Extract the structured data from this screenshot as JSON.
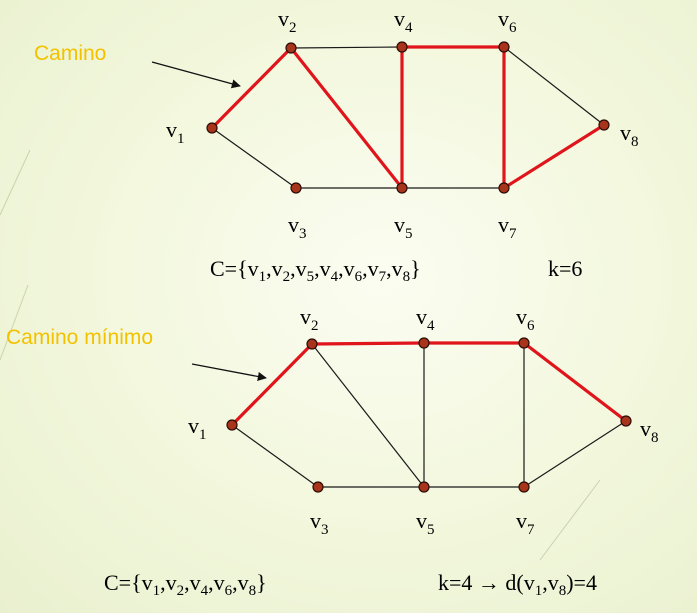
{
  "colors": {
    "path_edge": "#e0151b",
    "edge": "#1a1a1a",
    "node": "#a8341b",
    "callout_text": "#f2c200"
  },
  "graphs": [
    {
      "id": "top",
      "callout": "Camino",
      "vertices": [
        "v1",
        "v2",
        "v3",
        "v4",
        "v5",
        "v6",
        "v7",
        "v8"
      ],
      "edges": [
        {
          "from": "v1",
          "to": "v2",
          "highlighted": true
        },
        {
          "from": "v1",
          "to": "v3",
          "highlighted": false
        },
        {
          "from": "v2",
          "to": "v4",
          "highlighted": false
        },
        {
          "from": "v2",
          "to": "v5",
          "highlighted": true
        },
        {
          "from": "v3",
          "to": "v5",
          "highlighted": false
        },
        {
          "from": "v4",
          "to": "v5",
          "highlighted": true
        },
        {
          "from": "v4",
          "to": "v6",
          "highlighted": true
        },
        {
          "from": "v5",
          "to": "v7",
          "highlighted": false
        },
        {
          "from": "v6",
          "to": "v7",
          "highlighted": true
        },
        {
          "from": "v6",
          "to": "v8",
          "highlighted": false
        },
        {
          "from": "v7",
          "to": "v8",
          "highlighted": true
        }
      ],
      "path_set": "C={v1,v2,v5,v4,v6,v7,v8}",
      "length": "k=6"
    },
    {
      "id": "bottom",
      "callout": "Camino mínimo",
      "vertices": [
        "v1",
        "v2",
        "v3",
        "v4",
        "v5",
        "v6",
        "v7",
        "v8"
      ],
      "edges": [
        {
          "from": "v1",
          "to": "v2",
          "highlighted": true
        },
        {
          "from": "v1",
          "to": "v3",
          "highlighted": false
        },
        {
          "from": "v2",
          "to": "v4",
          "highlighted": true
        },
        {
          "from": "v2",
          "to": "v5",
          "highlighted": false
        },
        {
          "from": "v3",
          "to": "v5",
          "highlighted": false
        },
        {
          "from": "v4",
          "to": "v5",
          "highlighted": false
        },
        {
          "from": "v4",
          "to": "v6",
          "highlighted": true
        },
        {
          "from": "v5",
          "to": "v7",
          "highlighted": false
        },
        {
          "from": "v6",
          "to": "v7",
          "highlighted": false
        },
        {
          "from": "v6",
          "to": "v8",
          "highlighted": true
        },
        {
          "from": "v7",
          "to": "v8",
          "highlighted": false
        }
      ],
      "path_set": "C={v1,v2,v4,v6,v8}",
      "length": "k=4 → d(v1,v8)=4"
    }
  ]
}
